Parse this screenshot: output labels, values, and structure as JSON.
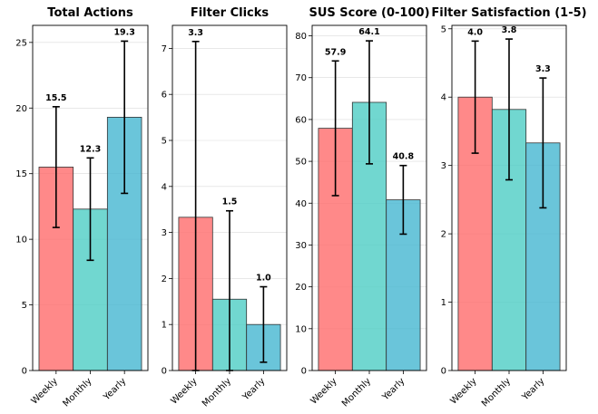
{
  "chart_data": [
    {
      "type": "bar",
      "title": "Total Actions",
      "categories": [
        "Weekly",
        "Monthly",
        "Yearly"
      ],
      "values": [
        15.5,
        12.3,
        19.3
      ],
      "value_labels": [
        "15.5",
        "12.3",
        "19.3"
      ],
      "error_low": [
        10.9,
        8.4,
        13.5
      ],
      "error_high": [
        20.1,
        16.2,
        25.1
      ],
      "ylim": [
        0,
        26.3
      ],
      "yticks": [
        0,
        5,
        10,
        15,
        20,
        25
      ],
      "grid": true
    },
    {
      "type": "bar",
      "title": "Filter Clicks",
      "categories": [
        "Weekly",
        "Monthly",
        "Yearly"
      ],
      "values": [
        3.33,
        1.55,
        1.0
      ],
      "value_labels": [
        "3.3",
        "1.5",
        "1.0"
      ],
      "error_low": [
        0.0,
        0.0,
        0.18
      ],
      "error_high": [
        7.15,
        3.47,
        1.82
      ],
      "ylim": [
        0,
        7.5
      ],
      "yticks": [
        0,
        1,
        2,
        3,
        4,
        5,
        6,
        7
      ],
      "grid": true
    },
    {
      "type": "bar",
      "title": "SUS Score (0-100)",
      "categories": [
        "Weekly",
        "Monthly",
        "Yearly"
      ],
      "values": [
        57.9,
        64.1,
        40.8
      ],
      "value_labels": [
        "57.9",
        "64.1",
        "40.8"
      ],
      "error_low": [
        41.8,
        49.4,
        32.6
      ],
      "error_high": [
        74.0,
        78.8,
        49.0
      ],
      "ylim": [
        0,
        82.5
      ],
      "yticks": [
        0,
        10,
        20,
        30,
        40,
        50,
        60,
        70,
        80
      ],
      "grid": true
    },
    {
      "type": "bar",
      "title": "Filter Satisfaction (1-5)",
      "categories": [
        "Weekly",
        "Monthly",
        "Yearly"
      ],
      "values": [
        4.0,
        3.82,
        3.33
      ],
      "value_labels": [
        "4.0",
        "3.8",
        "3.3"
      ],
      "error_low": [
        3.18,
        2.79,
        2.38
      ],
      "error_high": [
        4.82,
        4.85,
        4.28
      ],
      "ylim": [
        0,
        5.05
      ],
      "yticks": [
        0,
        1,
        2,
        3,
        4,
        5
      ],
      "grid": true
    }
  ],
  "colors": {
    "bars": [
      "#ff6b6b",
      "#4ecdc4",
      "#45b7d1"
    ]
  }
}
